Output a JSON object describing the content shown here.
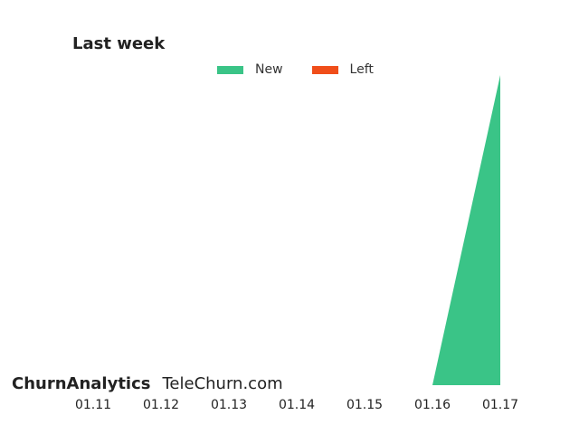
{
  "chart_data": {
    "type": "area",
    "title": "Last week",
    "x": [
      "01.11",
      "01.12",
      "01.13",
      "01.14",
      "01.15",
      "01.16",
      "01.17"
    ],
    "series": [
      {
        "name": "New",
        "color": "#3ac487",
        "values": [
          0,
          0,
          0,
          0,
          0,
          0,
          1
        ]
      },
      {
        "name": "Left",
        "color": "#f04e1a",
        "values": [
          0,
          0,
          0,
          0,
          0,
          0,
          0
        ]
      }
    ],
    "ylim": [
      0,
      1
    ],
    "grid": false,
    "legend_position": "top-center"
  },
  "watermark": {
    "brand": "ChurnAnalytics",
    "site": "TeleChurn.com"
  }
}
